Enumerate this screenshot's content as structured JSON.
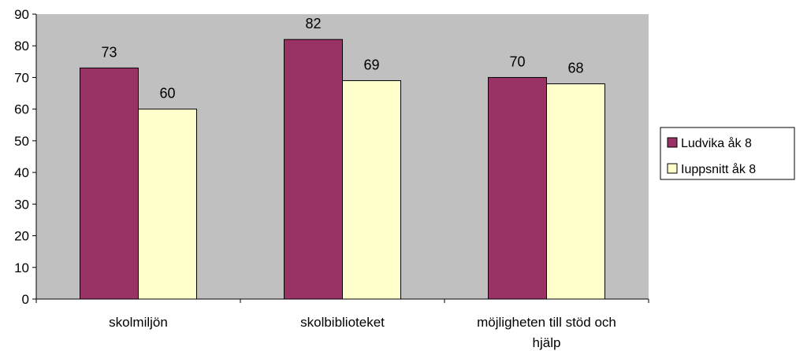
{
  "chart_data": {
    "type": "bar",
    "categories": [
      "skolmiljön",
      "skolbiblioteket",
      "möjligheten till stöd och hjälp"
    ],
    "category_lines": [
      [
        "skolmiljön"
      ],
      [
        "skolbiblioteket"
      ],
      [
        "möjligheten till stöd och",
        "hjälp"
      ]
    ],
    "series": [
      {
        "name": "Ludvika åk 8",
        "values": [
          73,
          82,
          70
        ],
        "color": "#993366"
      },
      {
        "name": "Iuppsnitt åk 8",
        "values": [
          60,
          69,
          68
        ],
        "color": "#FFFFCC"
      }
    ],
    "yticks": [
      0,
      10,
      20,
      30,
      40,
      50,
      60,
      70,
      80,
      90
    ],
    "ylim": [
      0,
      90
    ],
    "legend_position": "right",
    "plot_background": "#C0C0C0",
    "title": "",
    "xlabel": "",
    "ylabel": ""
  }
}
